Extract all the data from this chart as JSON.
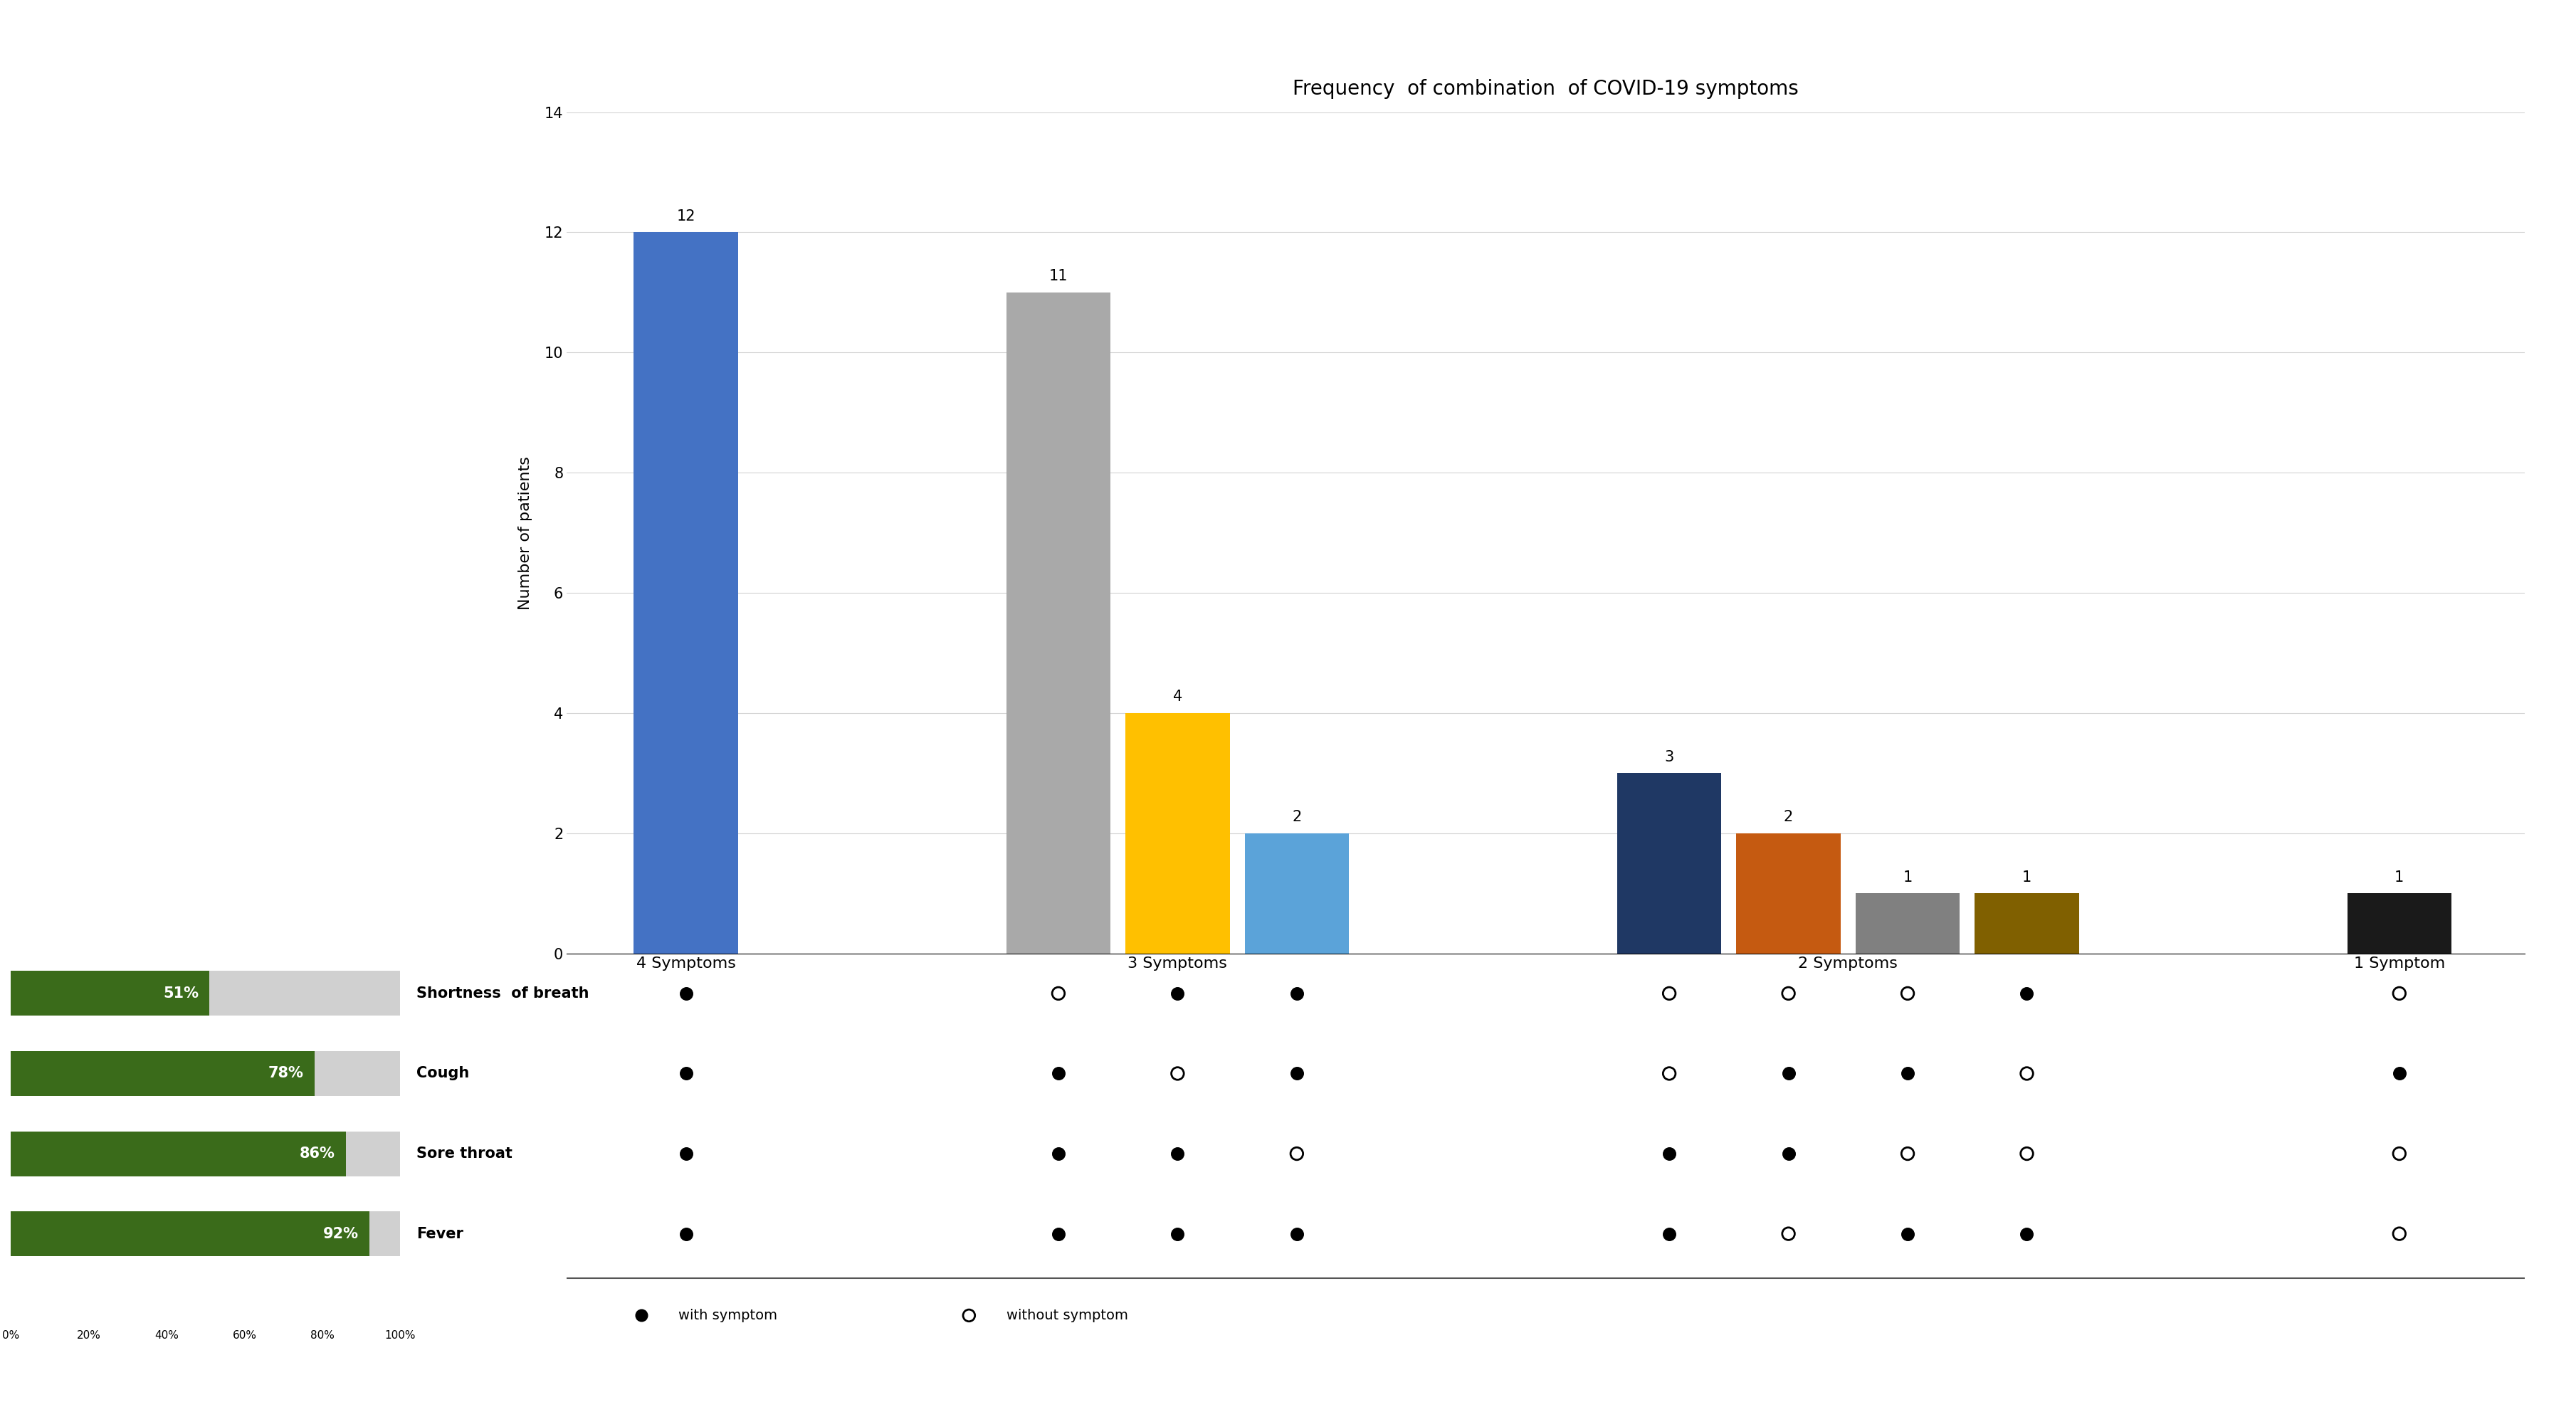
{
  "title": "Frequency  of combination  of COVID-19 symptoms",
  "bar_groups": [
    {
      "label": "4 Symptoms",
      "bars": [
        {
          "value": 12,
          "color": "#4472C4"
        }
      ]
    },
    {
      "label": "3 Symptoms",
      "bars": [
        {
          "value": 11,
          "color": "#A9A9A9"
        },
        {
          "value": 4,
          "color": "#FFC000"
        },
        {
          "value": 2,
          "color": "#5BA3D9"
        }
      ]
    },
    {
      "label": "2 Symptoms",
      "bars": [
        {
          "value": 3,
          "color": "#1F3864"
        },
        {
          "value": 2,
          "color": "#C55A11"
        },
        {
          "value": 1,
          "color": "#808080"
        },
        {
          "value": 1,
          "color": "#806000"
        }
      ]
    },
    {
      "label": "1 Symptom",
      "bars": [
        {
          "value": 1,
          "color": "#1A1A1A"
        }
      ]
    }
  ],
  "ylabel": "Number of patients",
  "ylim": [
    0,
    14
  ],
  "yticks": [
    0,
    2,
    4,
    6,
    8,
    10,
    12,
    14
  ],
  "symptoms": [
    "Shortness  of breath",
    "Cough",
    "Sore throat",
    "Fever"
  ],
  "percentages": [
    51,
    78,
    86,
    92
  ],
  "bar_color_green": "#3A6B1A",
  "symptom_grid": {
    "columns": 9,
    "data": [
      [
        "with",
        "without",
        "with",
        "with",
        "without",
        "without",
        "without",
        "with",
        "without"
      ],
      [
        "with",
        "with",
        "without",
        "with",
        "without",
        "with",
        "with",
        "without",
        "with"
      ],
      [
        "with",
        "with",
        "with",
        "without",
        "with",
        "with",
        "without",
        "without",
        "without"
      ],
      [
        "with",
        "with",
        "with",
        "with",
        "with",
        "without",
        "with",
        "with",
        "without"
      ]
    ]
  },
  "background_color": "#FFFFFF",
  "title_fontsize": 20,
  "axis_label_fontsize": 16,
  "tick_fontsize": 15,
  "symptom_fontsize": 15,
  "pct_fontsize": 15,
  "annot_fontsize": 15
}
